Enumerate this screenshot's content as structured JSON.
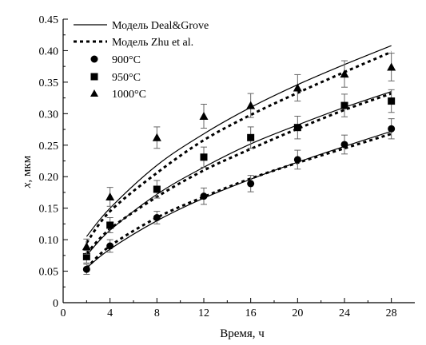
{
  "chart_data": {
    "type": "scatter",
    "xlabel": "Время, ч",
    "ylabel_var": "x",
    "ylabel_unit": ", мкм",
    "xlim": [
      0,
      30
    ],
    "ylim": [
      0,
      0.45
    ],
    "xticks": [
      0,
      4,
      8,
      12,
      16,
      20,
      24,
      28
    ],
    "xtick_labels": [
      "0",
      "4",
      "8",
      "12",
      "16",
      "20",
      "24",
      "28"
    ],
    "yticks": [
      0,
      0.05,
      0.1,
      0.15,
      0.2,
      0.25,
      0.3,
      0.35,
      0.4,
      0.45
    ],
    "ytick_labels": [
      "0",
      "0.05",
      "0.10",
      "0.15",
      "0.20",
      "0.25",
      "0.30",
      "0.35",
      "0.40",
      "0.45"
    ],
    "grid": false,
    "legend_position": "top-left",
    "legend": {
      "deal_grove": "Модель Deal&Grove",
      "zhu": "Модель Zhu et al.",
      "s900": "900°C",
      "s950": "950°C",
      "s1000": "1000°C"
    },
    "model_curves": [
      {
        "name": "Модель Deal&Grove",
        "style": "solid",
        "series": [
          {
            "x": [
              2,
              4,
              8,
              12,
              16,
              20,
              24,
              28
            ],
            "y": [
              0.055,
              0.085,
              0.13,
              0.166,
              0.196,
              0.223,
              0.248,
              0.272
            ]
          },
          {
            "x": [
              2,
              4,
              8,
              12,
              16,
              20,
              24,
              28
            ],
            "y": [
              0.075,
              0.115,
              0.172,
              0.215,
              0.252,
              0.282,
              0.31,
              0.335
            ]
          },
          {
            "x": [
              2,
              4,
              8,
              12,
              16,
              20,
              24,
              28
            ],
            "y": [
              0.105,
              0.15,
              0.218,
              0.268,
              0.31,
              0.346,
              0.378,
              0.408
            ]
          }
        ]
      },
      {
        "name": "Модель Zhu et al.",
        "style": "dotted",
        "series": [
          {
            "x": [
              2,
              4,
              8,
              12,
              16,
              20,
              24,
              28
            ],
            "y": [
              0.055,
              0.09,
              0.135,
              0.168,
              0.197,
              0.222,
              0.245,
              0.268
            ]
          },
          {
            "x": [
              2,
              4,
              8,
              12,
              16,
              20,
              24,
              28
            ],
            "y": [
              0.078,
              0.117,
              0.168,
              0.21,
              0.244,
              0.276,
              0.306,
              0.332
            ]
          },
          {
            "x": [
              2,
              4,
              8,
              12,
              16,
              20,
              24,
              28
            ],
            "y": [
              0.095,
              0.145,
              0.206,
              0.258,
              0.298,
              0.333,
              0.366,
              0.398
            ]
          }
        ]
      }
    ],
    "series": [
      {
        "name": "900°C",
        "marker": "circle",
        "x": [
          2,
          4,
          8,
          12,
          16,
          20,
          24,
          28
        ],
        "y": [
          0.053,
          0.09,
          0.135,
          0.169,
          0.189,
          0.227,
          0.251,
          0.276
        ],
        "err": [
          0.008,
          0.01,
          0.01,
          0.013,
          0.013,
          0.015,
          0.015,
          0.016
        ]
      },
      {
        "name": "950°C",
        "marker": "square",
        "x": [
          2,
          4,
          8,
          12,
          16,
          20,
          24,
          28
        ],
        "y": [
          0.073,
          0.123,
          0.18,
          0.231,
          0.262,
          0.278,
          0.313,
          0.32
        ],
        "err": [
          0.01,
          0.012,
          0.014,
          0.016,
          0.017,
          0.018,
          0.018,
          0.018
        ]
      },
      {
        "name": "1000°C",
        "marker": "triangle",
        "x": [
          2,
          4,
          8,
          12,
          16,
          20,
          24,
          28
        ],
        "y": [
          0.089,
          0.168,
          0.262,
          0.296,
          0.313,
          0.341,
          0.363,
          0.374
        ],
        "err": [
          0.012,
          0.015,
          0.017,
          0.019,
          0.019,
          0.021,
          0.021,
          0.022
        ]
      }
    ]
  }
}
